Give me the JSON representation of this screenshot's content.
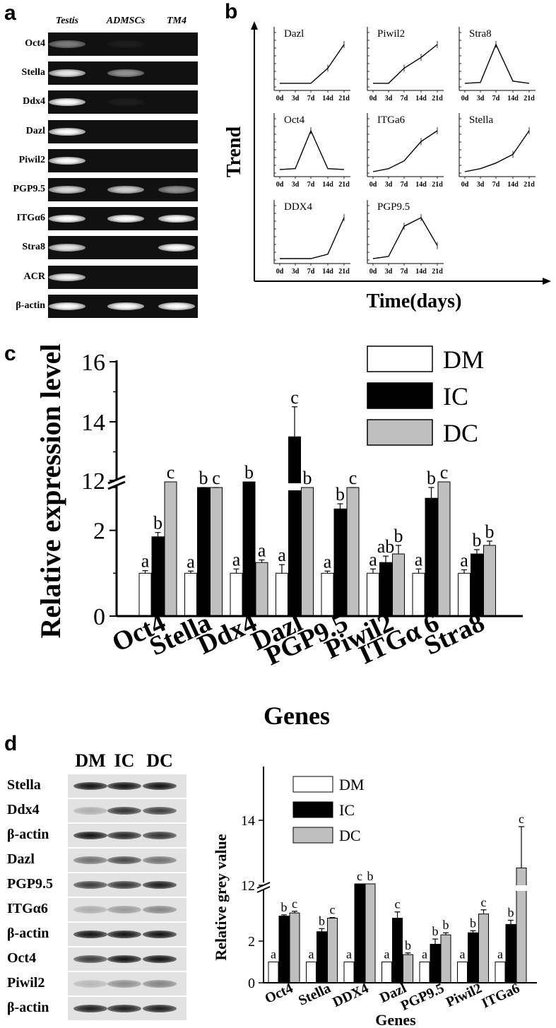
{
  "panels": {
    "a": {
      "letter": "a",
      "lanes": [
        "Testis",
        "ADMSCs",
        "TM4"
      ],
      "rows": [
        {
          "label": "Oct4",
          "bands": [
            0.45,
            0.05,
            0.0
          ]
        },
        {
          "label": "Stella",
          "bands": [
            0.9,
            0.55,
            0.0
          ]
        },
        {
          "label": "Ddx4",
          "bands": [
            1.0,
            0.05,
            0.0
          ]
        },
        {
          "label": "Dazl",
          "bands": [
            1.0,
            0.0,
            0.0
          ]
        },
        {
          "label": "Piwil2",
          "bands": [
            1.0,
            0.0,
            0.0
          ]
        },
        {
          "label": "PGP9.5",
          "bands": [
            0.85,
            0.8,
            0.55
          ]
        },
        {
          "label": "ITGα6",
          "bands": [
            1.0,
            1.0,
            1.0
          ]
        },
        {
          "label": "Stra8",
          "bands": [
            0.9,
            0.0,
            1.0
          ]
        },
        {
          "label": "ACR",
          "bands": [
            0.95,
            0.0,
            0.0
          ]
        },
        {
          "label": "β-actin",
          "bands": [
            1.0,
            1.0,
            1.0
          ]
        }
      ]
    },
    "b": {
      "letter": "b",
      "y_title": "Trend",
      "x_title": "Time(days)",
      "ticks": [
        "0d",
        "3d",
        "7d",
        "14d",
        "21d"
      ],
      "minis": [
        {
          "label": "Dazl",
          "values": [
            0.1,
            0.1,
            0.1,
            0.45,
            1.0
          ]
        },
        {
          "label": "Piwil2",
          "values": [
            0.1,
            0.1,
            0.45,
            0.7,
            1.0
          ]
        },
        {
          "label": "Stra8",
          "values": [
            0.1,
            0.12,
            1.0,
            0.15,
            0.1
          ]
        },
        {
          "label": "Oct4",
          "values": [
            0.1,
            0.12,
            1.0,
            0.12,
            0.1
          ]
        },
        {
          "label": "ITGa6",
          "values": [
            0.05,
            0.12,
            0.3,
            0.75,
            1.0
          ]
        },
        {
          "label": "Stella",
          "values": [
            0.05,
            0.12,
            0.25,
            0.45,
            1.0
          ]
        },
        {
          "label": "DDX4",
          "values": [
            0.05,
            0.05,
            0.05,
            0.15,
            1.0
          ]
        },
        {
          "label": "PGP9.5",
          "values": [
            0.05,
            0.1,
            0.8,
            1.0,
            0.35
          ]
        }
      ]
    },
    "c": {
      "letter": "c",
      "chart_data": {
        "type": "bar",
        "ylabel": "Relative expression level",
        "xlabel": "Genes",
        "axis_break": [
          3,
          12
        ],
        "ylim": [
          0,
          16
        ],
        "yticks": [
          "0",
          "2",
          "12",
          "14",
          "16"
        ],
        "categories": [
          "Oct4",
          "Stella",
          "Ddx4",
          "Dazl",
          "PGP9.5",
          "Piwil2",
          "ITGα 6",
          "Stra8"
        ],
        "series": [
          {
            "name": "DM",
            "color": "#ffffff",
            "values": [
              1,
              1,
              1,
              1,
              1,
              1,
              1,
              1
            ],
            "errors": [
              0.06,
              0.05,
              0.1,
              0.2,
              0.05,
              0.1,
              0.1,
              0.08
            ],
            "letters": [
              "a",
              "a",
              "a",
              "a",
              "a",
              "a",
              "a",
              "a"
            ]
          },
          {
            "name": "IC",
            "color": "#000000",
            "values": [
              1.85,
              3.3,
              12,
              13.5,
              2.5,
              1.25,
              2.75,
              1.45
            ],
            "errors": [
              0.1,
              0.12,
              0,
              1.0,
              0.12,
              0.15,
              0.25,
              0.1
            ],
            "letters": [
              "b",
              "b",
              "b",
              "c",
              "b",
              "ab",
              "b",
              "b"
            ]
          },
          {
            "name": "DC",
            "color": "#bfbfbf",
            "values": [
              12,
              3.7,
              1.25,
              3.35,
              3.1,
              1.45,
              12,
              1.65
            ],
            "errors": [
              0,
              0.12,
              0.06,
              0,
              0.1,
              0.2,
              0,
              0.1
            ],
            "letters": [
              "c",
              "c",
              "a",
              "b",
              "c",
              "b",
              "c",
              "b"
            ]
          }
        ],
        "legend": "top-right"
      }
    },
    "d": {
      "letter": "d",
      "wb_lanes": [
        "DM",
        "IC",
        "DC"
      ],
      "wb_rows": [
        {
          "label": "Stella",
          "bands": [
            1.0,
            1.0,
            1.0
          ]
        },
        {
          "label": "Ddx4",
          "bands": [
            0.25,
            0.85,
            0.8
          ]
        },
        {
          "label": "β-actin",
          "bands": [
            1.0,
            0.9,
            0.85
          ]
        },
        {
          "label": "Dazl",
          "bands": [
            0.55,
            0.75,
            0.55
          ]
        },
        {
          "label": "PGP9.5",
          "bands": [
            0.8,
            0.85,
            0.95
          ]
        },
        {
          "label": "ITGα6",
          "bands": [
            0.25,
            0.35,
            0.45
          ]
        },
        {
          "label": "β-actin",
          "bands": [
            1.0,
            1.0,
            1.0
          ]
        },
        {
          "label": "Oct4",
          "bands": [
            0.8,
            1.0,
            1.0
          ]
        },
        {
          "label": "Piwil2",
          "bands": [
            0.2,
            0.4,
            0.45
          ]
        },
        {
          "label": "β-actin",
          "bands": [
            0.95,
            0.95,
            0.95
          ]
        }
      ],
      "chart_data": {
        "type": "bar",
        "ylabel": "Relative grey value",
        "xlabel": "Genes",
        "axis_break": [
          3,
          12
        ],
        "ylim": [
          0,
          16
        ],
        "yticks": [
          "0",
          "2",
          "12",
          "14"
        ],
        "categories": [
          "Oct4",
          "Stella",
          "DDX4",
          "Dazl",
          "PGP9.5",
          "Piwil2",
          "ITGa6"
        ],
        "series": [
          {
            "name": "DM",
            "color": "#ffffff",
            "values": [
              1,
              1,
              1,
              1,
              1,
              1,
              1
            ],
            "errors": [
              0,
              0,
              0,
              0,
              0,
              0,
              0
            ],
            "letters": [
              "a",
              "a",
              "a",
              "a",
              "a",
              "a",
              "a"
            ]
          },
          {
            "name": "IC",
            "color": "#000000",
            "values": [
              3.2,
              2.45,
              12,
              3.1,
              1.85,
              2.4,
              2.8
            ],
            "errors": [
              0.06,
              0.15,
              0,
              0.3,
              0.25,
              0.1,
              0.2
            ],
            "letters": [
              "b",
              "b",
              "c",
              "c",
              "b",
              "b",
              "b"
            ]
          },
          {
            "name": "DC",
            "color": "#bfbfbf",
            "values": [
              3.35,
              3.1,
              12,
              1.35,
              2.3,
              3.3,
              12.5
            ],
            "errors": [
              0.08,
              0.03,
              0,
              0.08,
              0.1,
              0.2,
              1.3
            ],
            "letters": [
              "c",
              "c",
              "b",
              "b",
              "b",
              "c",
              "c"
            ]
          }
        ],
        "legend": "top"
      }
    }
  }
}
